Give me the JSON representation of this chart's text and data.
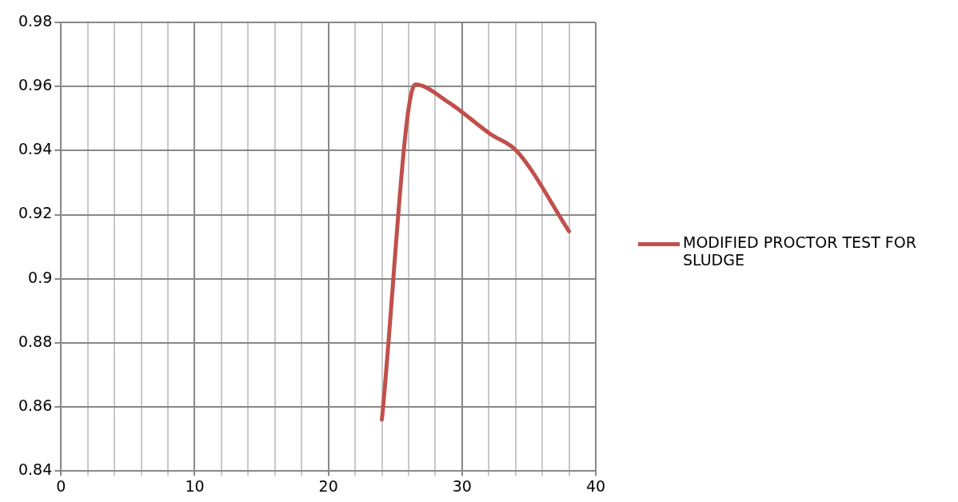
{
  "chart_data": {
    "type": "line",
    "series": [
      {
        "name": "MODIFIED PROCTOR TEST FOR SLUDGE",
        "color": "#c0504d",
        "x": [
          24,
          26.5,
          29,
          32.1,
          34.1,
          38
        ],
        "values": [
          0.856,
          0.9606,
          0.955,
          0.9452,
          0.9398,
          0.9148
        ]
      }
    ],
    "xlim": [
      0,
      40
    ],
    "xticks": [
      0,
      {
        "value": 2,
        "label": null
      },
      {
        "value": 4,
        "label": null
      },
      {
        "value": 6,
        "label": null
      },
      {
        "value": 8,
        "label": null
      },
      10,
      {
        "value": 12,
        "label": null
      },
      {
        "value": 14,
        "label": null
      },
      {
        "value": 16,
        "label": null
      },
      {
        "value": 18,
        "label": null
      },
      20,
      {
        "value": 22,
        "label": null
      },
      {
        "value": 24,
        "label": null
      },
      {
        "value": 26,
        "label": null
      },
      {
        "value": 28,
        "label": null
      },
      30,
      {
        "value": 32,
        "label": null
      },
      {
        "value": 34,
        "label": null
      },
      {
        "value": 36,
        "label": null
      },
      {
        "value": 38,
        "label": null
      },
      40
    ],
    "ylim": [
      0.84,
      0.98
    ],
    "yticks": [
      0.84,
      0.86,
      0.88,
      0.9,
      0.92,
      0.94,
      0.96,
      0.98
    ],
    "grid": true,
    "legend": "right",
    "marker": "none",
    "line_style": "solid"
  }
}
